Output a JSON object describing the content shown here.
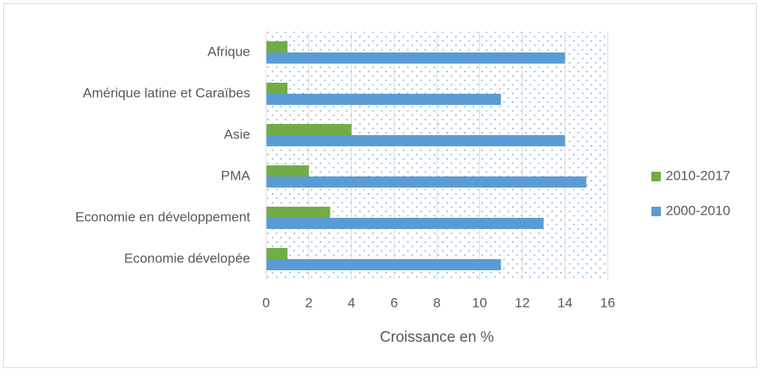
{
  "chart_data": {
    "type": "bar",
    "orientation": "horizontal",
    "x_label": "Croissance en %",
    "categories": [
      "Afrique",
      "Amérique latine et Caraïbes",
      "Asie",
      "PMA",
      "Economie en développement",
      "Economie dévelopée"
    ],
    "series": [
      {
        "name": "2010-2017",
        "color": "#70ad47",
        "values": [
          1,
          1,
          4,
          2,
          3,
          1
        ]
      },
      {
        "name": "2000-2010",
        "color": "#5b9bd5",
        "values": [
          14,
          11,
          14,
          15,
          13,
          11
        ]
      }
    ],
    "xlim": [
      0,
      16
    ],
    "xticks": [
      0,
      2,
      4,
      6,
      8,
      10,
      12,
      14,
      16
    ],
    "grid": true,
    "legend": "right"
  }
}
